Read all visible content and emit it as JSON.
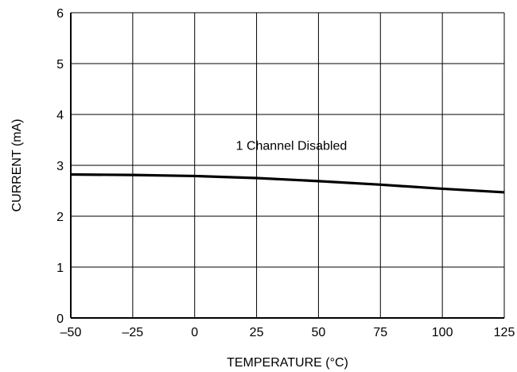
{
  "chart_data": {
    "type": "line",
    "xlabel": "TEMPERATURE (°C)",
    "ylabel": "CURRENT (mA)",
    "xlim": [
      -50,
      125
    ],
    "ylim": [
      0,
      6
    ],
    "x_ticks": [
      -50,
      -25,
      0,
      25,
      50,
      75,
      100,
      125
    ],
    "x_tick_labels": [
      "–50",
      "–25",
      "0",
      "25",
      "50",
      "75",
      "100",
      "125"
    ],
    "y_ticks": [
      0,
      1,
      2,
      3,
      4,
      5,
      6
    ],
    "y_tick_labels": [
      "0",
      "1",
      "2",
      "3",
      "4",
      "5",
      "6"
    ],
    "grid": true,
    "annotations": [
      {
        "text": "1 Channel Disabled",
        "x": 50,
        "y": 3.4
      }
    ],
    "series": [
      {
        "x": [
          -50,
          -25,
          0,
          25,
          50,
          75,
          100,
          125
        ],
        "values": [
          2.82,
          2.81,
          2.79,
          2.75,
          2.69,
          2.62,
          2.54,
          2.47
        ]
      }
    ],
    "colors": {
      "line": "#000000",
      "grid": "#000000",
      "axis": "#000000"
    }
  }
}
